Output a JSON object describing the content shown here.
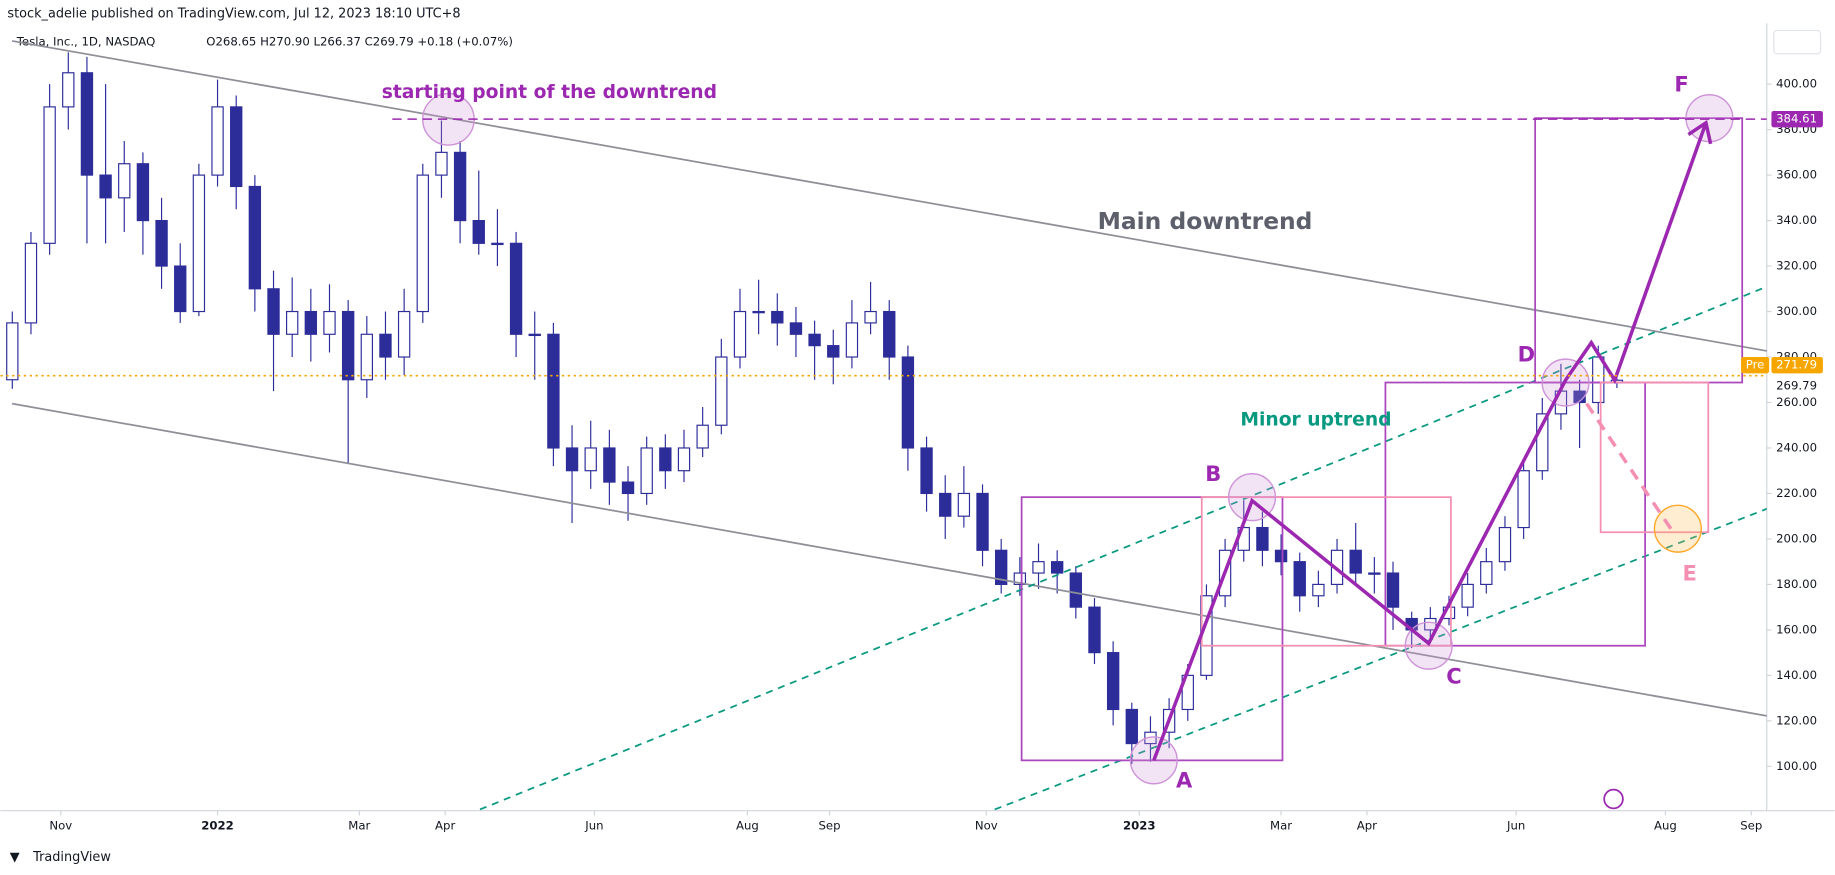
{
  "header": {
    "credit": "stock_adelie published on TradingView.com, Jul 12, 2023 18:10 UTC+8",
    "symbol": "Tesla, Inc., 1D, NASDAQ",
    "quote": "O268.65 H270.90 L266.37 C269.79 +0.18 (+0.07%)"
  },
  "footer": {
    "brand": "TradingView"
  },
  "chart_data": {
    "type": "candlestick",
    "up_color": "#ffffff",
    "down_color": "#2d2d9a",
    "outline_color": "#2d2d9a",
    "grid": false,
    "xlim": [
      -1,
      470
    ],
    "ylim": [
      80.5,
      422.6
    ],
    "xticks": [
      {
        "value": 13,
        "label": "Nov"
      },
      {
        "value": 55,
        "label": "2022"
      },
      {
        "value": 93,
        "label": "Mar"
      },
      {
        "value": 116,
        "label": "Apr"
      },
      {
        "value": 156,
        "label": "Jun"
      },
      {
        "value": 197,
        "label": "Aug"
      },
      {
        "value": 219,
        "label": "Sep"
      },
      {
        "value": 261,
        "label": "Nov"
      },
      {
        "value": 302,
        "label": "2023"
      },
      {
        "value": 340,
        "label": "Mar"
      },
      {
        "value": 363,
        "label": "Apr"
      },
      {
        "value": 403,
        "label": "Jun"
      },
      {
        "value": 443,
        "label": "Aug"
      },
      {
        "value": 466,
        "label": "Sep"
      }
    ],
    "yticks": [
      {
        "value": 100,
        "label": "100.00"
      },
      {
        "value": 120,
        "label": "120.00"
      },
      {
        "value": 140,
        "label": "140.00"
      },
      {
        "value": 160,
        "label": "160.00"
      },
      {
        "value": 180,
        "label": "180.00"
      },
      {
        "value": 200,
        "label": "200.00"
      },
      {
        "value": 220,
        "label": "220.00"
      },
      {
        "value": 240,
        "label": "240.00"
      },
      {
        "value": 260,
        "label": "260.00"
      },
      {
        "value": 280,
        "label": "280.00"
      },
      {
        "value": 300,
        "label": "300.00"
      },
      {
        "value": 320,
        "label": "320.00"
      },
      {
        "value": 340,
        "label": "340.00"
      },
      {
        "value": 360,
        "label": "360.00"
      },
      {
        "value": 380,
        "label": "380.00"
      },
      {
        "value": 400,
        "label": "400.00"
      }
    ],
    "x": [
      0,
      5,
      10,
      15,
      20,
      25,
      30,
      35,
      40,
      45,
      50,
      55,
      60,
      65,
      70,
      75,
      80,
      85,
      90,
      95,
      100,
      105,
      110,
      115,
      120,
      125,
      130,
      135,
      140,
      145,
      150,
      155,
      160,
      165,
      170,
      175,
      180,
      185,
      190,
      195,
      200,
      205,
      210,
      215,
      220,
      225,
      230,
      235,
      240,
      245,
      250,
      255,
      260,
      265,
      270,
      275,
      280,
      285,
      290,
      295,
      300,
      305,
      310,
      315,
      320,
      325,
      330,
      335,
      340,
      345,
      350,
      355,
      360,
      365,
      370,
      375,
      380,
      385,
      390,
      395,
      400,
      405,
      410,
      415,
      420,
      425,
      430
    ],
    "open": [
      270,
      295,
      330,
      390,
      405,
      360,
      350,
      365,
      340,
      320,
      300,
      360,
      390,
      355,
      310,
      290,
      300,
      290,
      300,
      270,
      290,
      280,
      300,
      360,
      370,
      340,
      330,
      330,
      290,
      290,
      240,
      230,
      240,
      225,
      220,
      240,
      230,
      240,
      250,
      280,
      300,
      300,
      295,
      290,
      285,
      280,
      295,
      300,
      280,
      240,
      220,
      210,
      220,
      195,
      180,
      185,
      190,
      185,
      170,
      150,
      125,
      110,
      115,
      125,
      140,
      175,
      195,
      205,
      195,
      190,
      175,
      180,
      195,
      185,
      185,
      165,
      160,
      165,
      170,
      180,
      190,
      205,
      230,
      255,
      265,
      260,
      268.65
    ],
    "high": [
      300,
      335,
      400,
      414,
      412,
      400,
      375,
      370,
      350,
      330,
      365,
      402,
      395,
      360,
      318,
      315,
      310,
      312,
      305,
      298,
      300,
      310,
      365,
      384,
      375,
      362,
      345,
      335,
      300,
      295,
      250,
      252,
      248,
      232,
      245,
      246,
      248,
      258,
      288,
      310,
      314,
      308,
      302,
      296,
      292,
      305,
      313,
      305,
      285,
      245,
      228,
      232,
      224,
      200,
      192,
      198,
      195,
      188,
      174,
      155,
      128,
      122,
      130,
      145,
      180,
      200,
      217,
      212,
      202,
      194,
      186,
      200,
      207,
      192,
      190,
      168,
      170,
      175,
      185,
      196,
      210,
      235,
      262,
      277,
      270,
      285,
      270.9
    ],
    "low": [
      266,
      290,
      325,
      380,
      330,
      330,
      335,
      325,
      310,
      295,
      298,
      355,
      345,
      300,
      265,
      280,
      278,
      282,
      233,
      262,
      270,
      272,
      295,
      350,
      330,
      325,
      320,
      280,
      270,
      232,
      207,
      222,
      215,
      208,
      215,
      222,
      225,
      236,
      246,
      275,
      290,
      285,
      280,
      270,
      268,
      275,
      290,
      270,
      230,
      212,
      200,
      205,
      188,
      176,
      175,
      178,
      176,
      165,
      145,
      118,
      101,
      102,
      108,
      120,
      138,
      170,
      190,
      188,
      184,
      168,
      170,
      176,
      180,
      176,
      160,
      152,
      156,
      162,
      166,
      176,
      186,
      200,
      226,
      248,
      240,
      255,
      266.37
    ],
    "close": [
      295,
      330,
      390,
      405,
      360,
      350,
      365,
      340,
      320,
      300,
      360,
      390,
      355,
      310,
      290,
      300,
      290,
      300,
      270,
      290,
      280,
      300,
      360,
      370,
      340,
      330,
      330,
      290,
      290,
      240,
      230,
      240,
      225,
      220,
      240,
      230,
      240,
      250,
      280,
      300,
      300,
      295,
      290,
      285,
      280,
      295,
      300,
      280,
      240,
      220,
      210,
      220,
      195,
      180,
      185,
      190,
      185,
      170,
      150,
      125,
      110,
      115,
      125,
      140,
      175,
      195,
      205,
      195,
      190,
      175,
      180,
      195,
      185,
      185,
      170,
      160,
      165,
      170,
      180,
      190,
      205,
      230,
      255,
      265,
      260,
      280,
      269.79
    ],
    "price_lines": [
      {
        "value": 384.61,
        "color": "#9c27b0",
        "style": "dashed"
      },
      {
        "value": 271.79,
        "color": "#f7a600",
        "style": "dotted",
        "tag": "Pre"
      },
      {
        "value": 269.79,
        "color": "#2d2d9a",
        "style": "none"
      }
    ],
    "annotations": {
      "start": "starting point of the downtrend",
      "main": "Main downtrend",
      "minor": "Minor uptrend",
      "A": "A",
      "B": "B",
      "C": "C",
      "D": "D",
      "E": "E",
      "F": "F"
    }
  }
}
